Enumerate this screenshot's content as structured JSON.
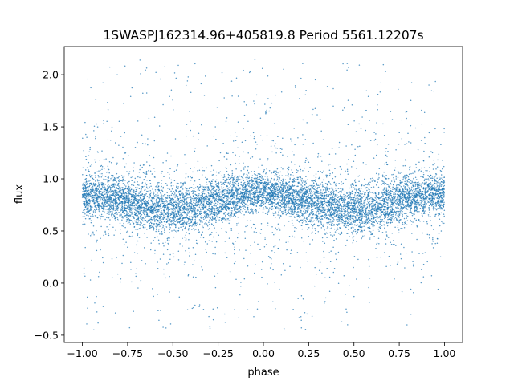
{
  "chart_data": {
    "type": "scatter",
    "title": "1SWASPJ162314.96+405819.8 Period 5561.12207s",
    "xlabel": "phase",
    "ylabel": "flux",
    "xlim": [
      -1.1,
      1.1
    ],
    "ylim": [
      -0.57,
      2.27
    ],
    "xticks": [
      -1.0,
      -0.75,
      -0.5,
      -0.25,
      0.0,
      0.25,
      0.5,
      0.75,
      1.0
    ],
    "xtick_labels": [
      "−1.00",
      "−0.75",
      "−0.50",
      "−0.25",
      "0.00",
      "0.25",
      "0.50",
      "0.75",
      "1.00"
    ],
    "yticks": [
      -0.5,
      0.0,
      0.5,
      1.0,
      1.5,
      2.0
    ],
    "ytick_labels": [
      "−0.5",
      "0.0",
      "0.5",
      "1.0",
      "1.5",
      "2.0"
    ],
    "grid": false,
    "marker_color": "#1f77b4",
    "phase_range": [
      -1.0,
      1.0
    ],
    "flux_envelope": {
      "phase": [
        -1.0,
        -0.9,
        -0.75,
        -0.6,
        -0.5,
        -0.4,
        -0.25,
        -0.1,
        0.0,
        0.1,
        0.25,
        0.4,
        0.5,
        0.6,
        0.75,
        0.9,
        1.0
      ],
      "upper": [
        1.05,
        1.05,
        1.0,
        0.95,
        0.93,
        0.95,
        1.02,
        1.05,
        1.05,
        1.05,
        1.0,
        0.95,
        0.93,
        0.95,
        1.02,
        1.05,
        1.05
      ],
      "lower": [
        0.68,
        0.63,
        0.55,
        0.48,
        0.45,
        0.48,
        0.58,
        0.66,
        0.7,
        0.66,
        0.56,
        0.48,
        0.45,
        0.48,
        0.58,
        0.65,
        0.68
      ],
      "center": [
        0.86,
        0.84,
        0.78,
        0.72,
        0.7,
        0.72,
        0.8,
        0.86,
        0.88,
        0.86,
        0.78,
        0.72,
        0.7,
        0.72,
        0.8,
        0.85,
        0.86
      ]
    },
    "scatter_range": [
      -0.45,
      2.15
    ]
  }
}
